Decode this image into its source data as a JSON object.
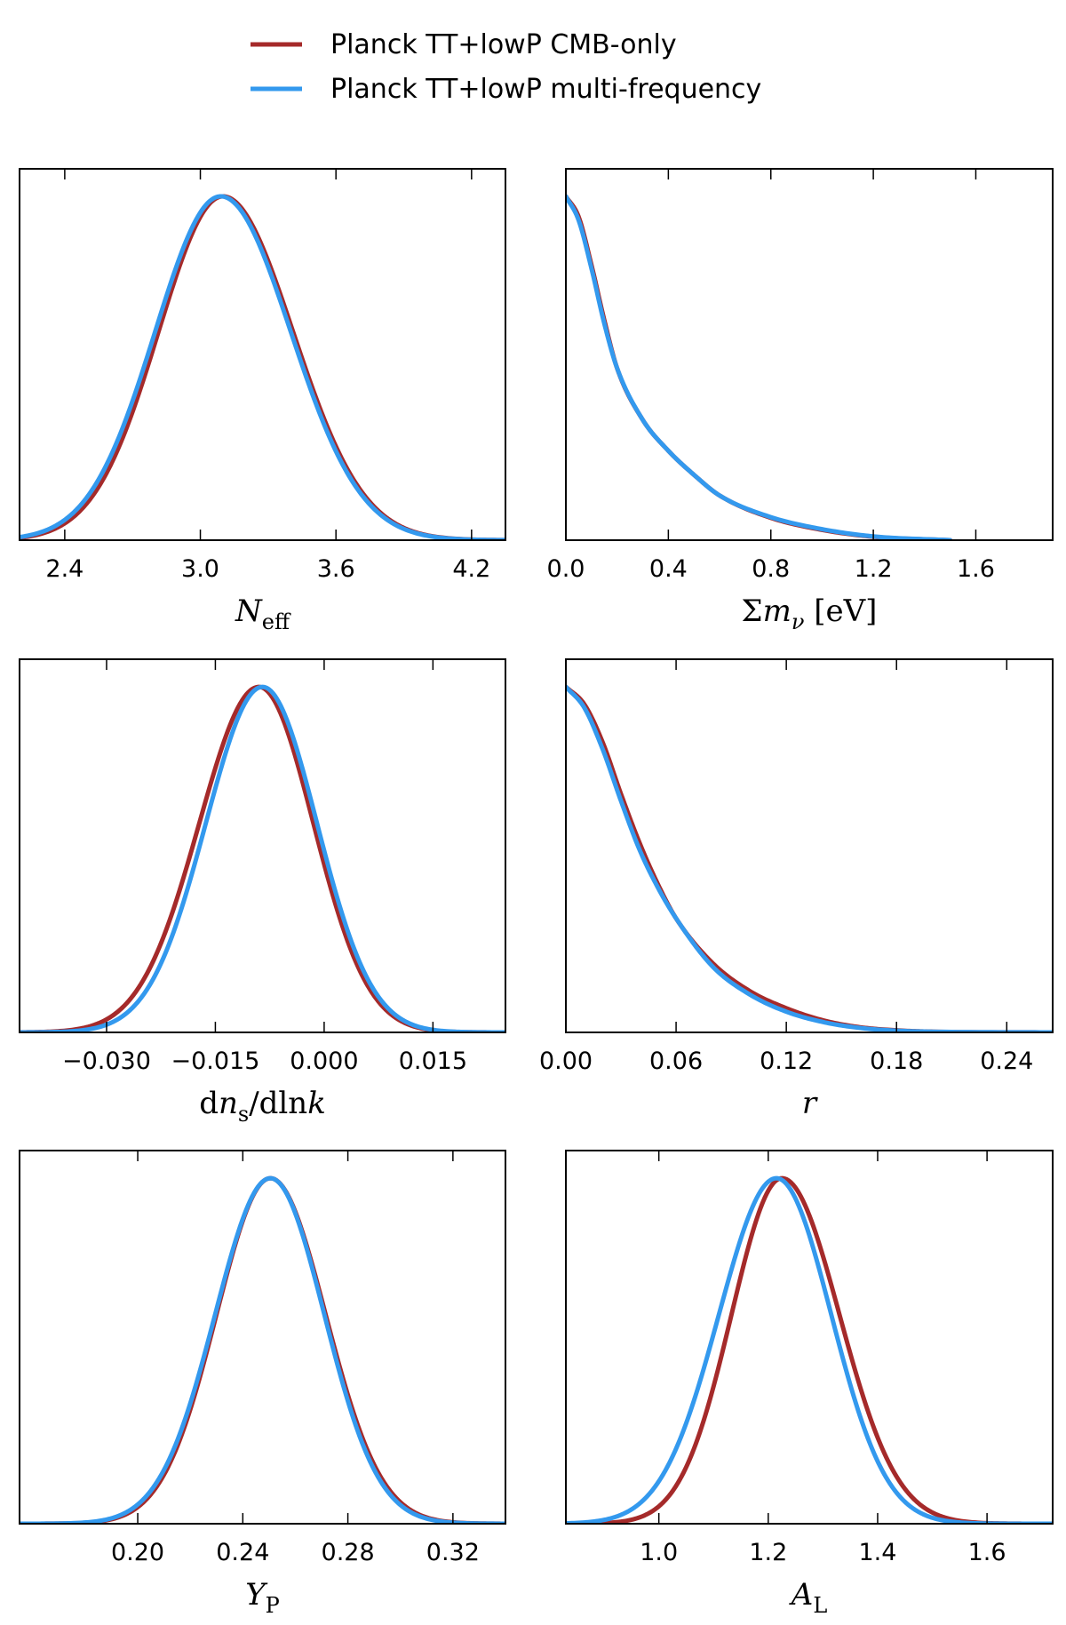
{
  "legend": [
    {
      "label": "Planck TT+lowP CMB-only",
      "color": "#a52a2a"
    },
    {
      "label": "Planck TT+lowP multi-frequency",
      "color": "#3399ee"
    }
  ],
  "chart_data": [
    {
      "type": "line",
      "id": "neff",
      "xlabel": "N_eff",
      "xlabel_main": "N",
      "xlabel_sub": "eff",
      "xlim": [
        2.2,
        4.35
      ],
      "ylim": [
        0,
        1.08
      ],
      "xticks": [
        2.4,
        3.0,
        3.6,
        4.2
      ],
      "xtick_labels": [
        "2.4",
        "3.0",
        "3.6",
        "4.2"
      ],
      "series": [
        {
          "name": "Planck TT+lowP CMB-only",
          "color": "#a52a2a",
          "shape": "gauss",
          "mu": 3.1,
          "sigma_left": 0.285,
          "sigma_right": 0.31,
          "domain": [
            2.2,
            4.35
          ]
        },
        {
          "name": "Planck TT+lowP multi-frequency",
          "color": "#3399ee",
          "shape": "gauss",
          "mu": 3.09,
          "sigma_left": 0.29,
          "sigma_right": 0.31,
          "domain": [
            2.2,
            4.35
          ]
        }
      ]
    },
    {
      "type": "line",
      "id": "mnu",
      "xlabel": "Σm_ν [eV]",
      "xlabel_main": "Σm",
      "xlabel_sub": "ν",
      "xlabel_suffix": " [eV]",
      "xlim": [
        0.0,
        1.9
      ],
      "ylim": [
        0,
        1.08
      ],
      "xticks": [
        0.0,
        0.4,
        0.8,
        1.2,
        1.6
      ],
      "xtick_labels": [
        "0.0",
        "0.4",
        "0.8",
        "1.2",
        "1.6"
      ],
      "series": [
        {
          "name": "Planck TT+lowP CMB-only",
          "color": "#a52a2a",
          "shape": "pts",
          "x": [
            0.0,
            0.05,
            0.1,
            0.15,
            0.2,
            0.3,
            0.4,
            0.5,
            0.6,
            0.8,
            1.0,
            1.2,
            1.5
          ],
          "y": [
            1.0,
            0.94,
            0.8,
            0.64,
            0.5,
            0.35,
            0.26,
            0.19,
            0.13,
            0.065,
            0.03,
            0.01,
            0.0
          ]
        },
        {
          "name": "Planck TT+lowP multi-frequency",
          "color": "#3399ee",
          "shape": "pts",
          "x": [
            0.0,
            0.05,
            0.1,
            0.15,
            0.2,
            0.3,
            0.4,
            0.5,
            0.6,
            0.8,
            1.0,
            1.2,
            1.5
          ],
          "y": [
            1.0,
            0.93,
            0.79,
            0.63,
            0.5,
            0.35,
            0.26,
            0.19,
            0.13,
            0.067,
            0.032,
            0.011,
            0.0
          ]
        }
      ]
    },
    {
      "type": "line",
      "id": "dns",
      "xlabel": "dn_s/dlnk",
      "xlabel_main": "dn",
      "xlabel_sub": "s",
      "xlabel_suffix": "/dln",
      "xlabel_tail": "k",
      "xlim": [
        -0.042,
        0.025
      ],
      "ylim": [
        0,
        1.08
      ],
      "xticks": [
        -0.03,
        -0.015,
        0.0,
        0.015
      ],
      "xtick_labels": [
        "−0.030",
        "−0.015",
        "0.000",
        "0.015"
      ],
      "series": [
        {
          "name": "Planck TT+lowP CMB-only",
          "color": "#a52a2a",
          "shape": "gauss",
          "mu": -0.009,
          "sigma_left": 0.0082,
          "sigma_right": 0.0075,
          "domain": [
            -0.042,
            0.025
          ]
        },
        {
          "name": "Planck TT+lowP multi-frequency",
          "color": "#3399ee",
          "shape": "gauss",
          "mu": -0.0085,
          "sigma_left": 0.0078,
          "sigma_right": 0.0075,
          "domain": [
            -0.042,
            0.025
          ]
        }
      ]
    },
    {
      "type": "line",
      "id": "r",
      "xlabel": "r",
      "xlabel_main": "r",
      "xlim": [
        0.0,
        0.265
      ],
      "ylim": [
        0,
        1.08
      ],
      "xticks": [
        0.0,
        0.06,
        0.12,
        0.18,
        0.24
      ],
      "xtick_labels": [
        "0.00",
        "0.06",
        "0.12",
        "0.18",
        "0.24"
      ],
      "series": [
        {
          "name": "Planck TT+lowP CMB-only",
          "color": "#a52a2a",
          "shape": "pts",
          "x": [
            0.0,
            0.01,
            0.02,
            0.03,
            0.04,
            0.05,
            0.06,
            0.08,
            0.1,
            0.12,
            0.14,
            0.16,
            0.18,
            0.2,
            0.265
          ],
          "y": [
            1.0,
            0.95,
            0.84,
            0.69,
            0.55,
            0.43,
            0.33,
            0.2,
            0.12,
            0.07,
            0.035,
            0.015,
            0.006,
            0.002,
            0.0
          ]
        },
        {
          "name": "Planck TT+lowP multi-frequency",
          "color": "#3399ee",
          "shape": "pts",
          "x": [
            0.0,
            0.01,
            0.02,
            0.03,
            0.04,
            0.05,
            0.06,
            0.08,
            0.1,
            0.12,
            0.14,
            0.16,
            0.18,
            0.2,
            0.265
          ],
          "y": [
            1.0,
            0.94,
            0.82,
            0.67,
            0.53,
            0.42,
            0.33,
            0.19,
            0.11,
            0.06,
            0.03,
            0.013,
            0.005,
            0.002,
            0.0
          ]
        }
      ]
    },
    {
      "type": "line",
      "id": "yp",
      "xlabel": "Y_P",
      "xlabel_main": "Y",
      "xlabel_sub": "P",
      "xlim": [
        0.155,
        0.34
      ],
      "ylim": [
        0,
        1.08
      ],
      "xticks": [
        0.2,
        0.24,
        0.28,
        0.32
      ],
      "xtick_labels": [
        "0.20",
        "0.24",
        "0.28",
        "0.32"
      ],
      "series": [
        {
          "name": "Planck TT+lowP CMB-only",
          "color": "#a52a2a",
          "shape": "gauss",
          "mu": 0.2505,
          "sigma_left": 0.0205,
          "sigma_right": 0.021,
          "domain": [
            0.155,
            0.34
          ]
        },
        {
          "name": "Planck TT+lowP multi-frequency",
          "color": "#3399ee",
          "shape": "gauss",
          "mu": 0.2505,
          "sigma_left": 0.021,
          "sigma_right": 0.0205,
          "domain": [
            0.155,
            0.34
          ]
        }
      ]
    },
    {
      "type": "line",
      "id": "al",
      "xlabel": "A_L",
      "xlabel_main": "A",
      "xlabel_sub": "L",
      "xlim": [
        0.83,
        1.72
      ],
      "ylim": [
        0,
        1.08
      ],
      "xticks": [
        1.0,
        1.2,
        1.4,
        1.6
      ],
      "xtick_labels": [
        "1.0",
        "1.2",
        "1.4",
        "1.6"
      ],
      "series": [
        {
          "name": "Planck TT+lowP CMB-only",
          "color": "#a52a2a",
          "shape": "gauss",
          "mu": 1.225,
          "sigma_left": 0.092,
          "sigma_right": 0.105,
          "domain": [
            0.83,
            1.72
          ]
        },
        {
          "name": "Planck TT+lowP multi-frequency",
          "color": "#3399ee",
          "shape": "gauss",
          "mu": 1.215,
          "sigma_left": 0.105,
          "sigma_right": 0.1,
          "domain": [
            0.83,
            1.72
          ]
        }
      ]
    }
  ]
}
